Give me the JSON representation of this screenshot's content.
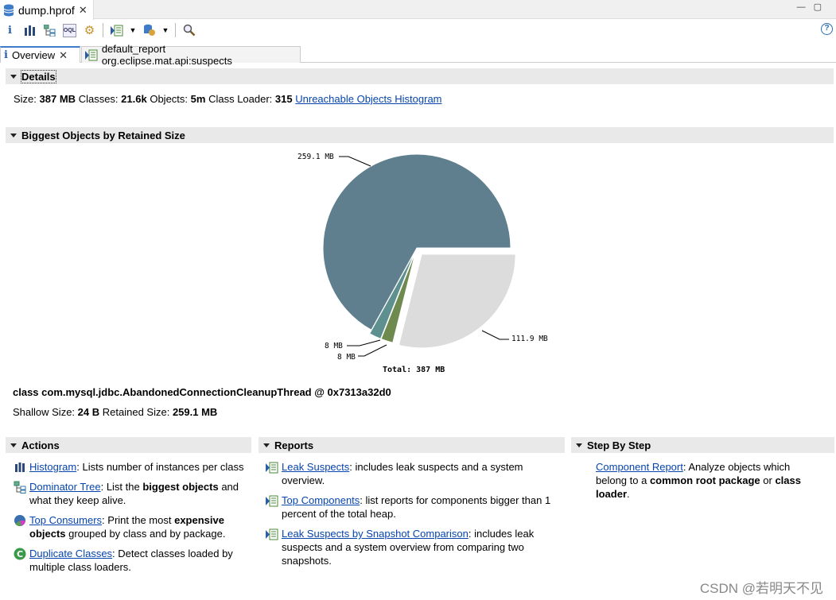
{
  "editor_tab": {
    "title": "dump.hprof",
    "icon": "database-icon"
  },
  "toolbar": {
    "items": [
      "info-icon",
      "histogram-icon",
      "dominator-tree-icon",
      "oql-icon",
      "heap-dump-overview-icon",
      "run-report-icon",
      "query-browser-icon",
      "search-icon"
    ]
  },
  "tabs": [
    {
      "label": "Overview"
    },
    {
      "label": "default_report org.eclipse.mat.api:suspects"
    }
  ],
  "details": {
    "header": "Details",
    "size_label": "Size:",
    "size": "387 MB",
    "classes_label": "Classes:",
    "classes": "21.6k",
    "objects_label": "Objects:",
    "objects": "5m",
    "loader_label": "Class Loader:",
    "loader": "315",
    "link": "Unreachable Objects Histogram"
  },
  "biggest": {
    "header": "Biggest Objects by Retained Size",
    "object_name": "class com.mysql.jdbc.AbandonedConnectionCleanupThread @ 0x7313a32d0",
    "shallow_label": "Shallow Size:",
    "shallow": "24 B",
    "retained_label": "Retained Size:",
    "retained": "259.1 MB"
  },
  "chart_data": {
    "type": "pie",
    "values": [
      259.1,
      8,
      8,
      111.9
    ],
    "labels": [
      "259.1 MB",
      "8 MB",
      "8 MB",
      "111.9 MB"
    ],
    "colors": [
      "#5f7f8e",
      "#5f9090",
      "#6e8a4e",
      "#dcdcdc"
    ],
    "total_label": "Total: 387 MB",
    "unit": "MB"
  },
  "actions": {
    "header": "Actions",
    "items": [
      {
        "link": "Histogram",
        "t1": ": Lists number of instances per class",
        "b1": "",
        "t2": ""
      },
      {
        "link": "Dominator Tree",
        "t1": ": List the ",
        "b1": "biggest objects",
        "t2": " and what they keep alive."
      },
      {
        "link": "Top Consumers",
        "t1": ": Print the most ",
        "b1": "expensive objects",
        "t2": " grouped by class and by package."
      },
      {
        "link": "Duplicate Classes",
        "t1": ": Detect classes loaded by multiple class loaders.",
        "b1": "",
        "t2": ""
      }
    ]
  },
  "reports": {
    "header": "Reports",
    "items": [
      {
        "link": "Leak Suspects",
        "t1": ": includes leak suspects and a system overview."
      },
      {
        "link": "Top Components",
        "t1": ": list reports for components bigger than 1 percent of the total heap."
      },
      {
        "link": "Leak Suspects by Snapshot Comparison",
        "t1": ": includes leak suspects and a system overview from comparing two snapshots."
      }
    ]
  },
  "steps": {
    "header": "Step By Step",
    "link": "Component Report",
    "t1": ": Analyze objects which belong to a ",
    "b1": "common root package",
    "t2": " or ",
    "b2": "class loader",
    "t3": "."
  },
  "watermark": "CSDN @若明天不见"
}
